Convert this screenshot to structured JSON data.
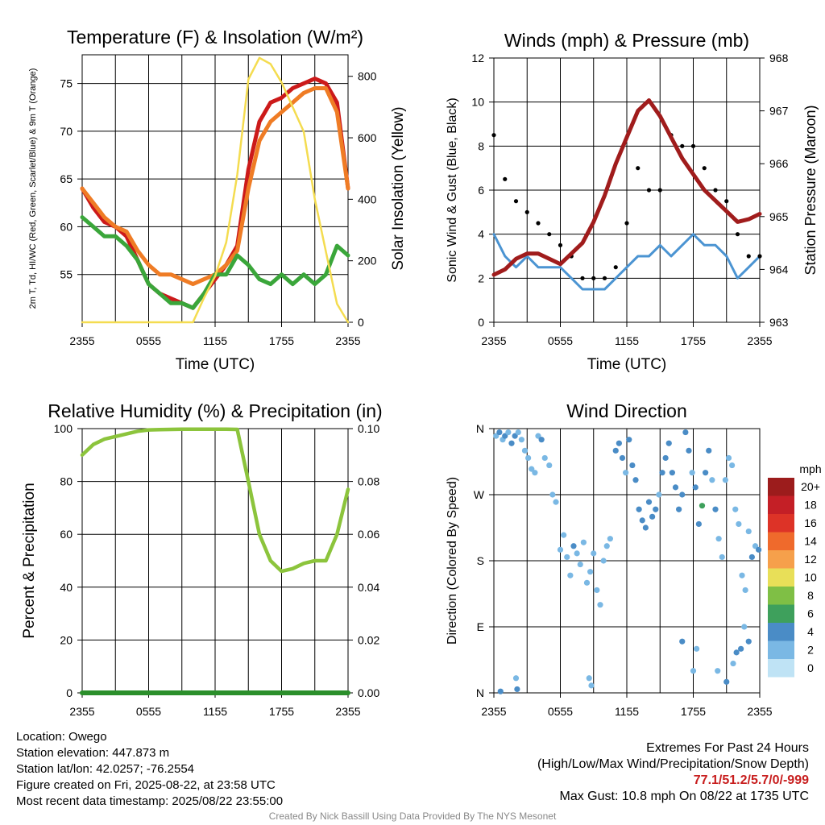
{
  "colors": {
    "red": "#cc1a1a",
    "orange": "#ef7c25",
    "green": "#3aa63a",
    "yellow": "#f4dc50",
    "maroon": "#a01c1c",
    "blue": "#4b94d2",
    "black": "#000000",
    "rh": "#8cc43c",
    "precip": "#2b8f2b",
    "extremes": "#c81e1e"
  },
  "xticks": [
    "2355",
    "0555",
    "1155",
    "1755",
    "2355"
  ],
  "xlabel": "Time (UTC)",
  "panels": {
    "temp": {
      "title": "Temperature (F) & Insolation (W/m²)",
      "ylabel_left": "2m T, Td, HI/WC (Red, Green, Scarlet/Blue) & 9m T (Orange)",
      "ylabel_right": "Solar Insolation (Yellow)",
      "yticks_left": [
        "55",
        "60",
        "65",
        "70",
        "75"
      ],
      "yticks_right": [
        "0",
        "200",
        "400",
        "600",
        "800"
      ]
    },
    "wind": {
      "title": "Winds (mph) & Pressure (mb)",
      "ylabel_left": "Sonic Wind & Gust (Blue, Black)",
      "ylabel_right": "Station Pressure (Maroon)",
      "yticks_left": [
        "0",
        "2",
        "4",
        "6",
        "8",
        "10",
        "12"
      ],
      "yticks_right": [
        "963",
        "964",
        "965",
        "966",
        "967",
        "968"
      ]
    },
    "rh": {
      "title": "Relative Humidity (%) & Precipitation (in)",
      "ylabel_left": "Percent & Precipitation",
      "yticks_left": [
        "0",
        "20",
        "40",
        "60",
        "80",
        "100"
      ],
      "yticks_right": [
        "0.00",
        "0.02",
        "0.04",
        "0.06",
        "0.08",
        "0.10"
      ]
    },
    "dir": {
      "title": "Wind Direction",
      "ylabel_left": "Direction (Colored By Speed)",
      "yticks_left": [
        "N",
        "E",
        "S",
        "W",
        "N"
      ],
      "legend_title": "mph",
      "legend_labels": [
        "20+",
        "18",
        "16",
        "14",
        "12",
        "10",
        "8",
        "6",
        "4",
        "2",
        "0"
      ],
      "legend_colors": [
        "#9c1c1c",
        "#c41f26",
        "#dd3327",
        "#ef6a2c",
        "#f6a04b",
        "#e8df58",
        "#7fbf45",
        "#3ea05c",
        "#4a8cc6",
        "#7ab8e4",
        "#bfe3f5"
      ]
    }
  },
  "chart_data": [
    {
      "type": "line",
      "title": "Temperature (F) & Insolation (W/m²)",
      "xlabel": "Time (UTC)",
      "x_hours": [
        0,
        1,
        2,
        3,
        4,
        5,
        6,
        7,
        8,
        9,
        10,
        11,
        12,
        13,
        14,
        15,
        16,
        17,
        18,
        19,
        20,
        21,
        22,
        23,
        24
      ],
      "ylim_left": [
        50,
        78
      ],
      "ylim_right": [
        0,
        870
      ],
      "series": [
        {
          "name": "2m T",
          "axis": "left",
          "values": [
            64,
            62,
            60.5,
            60,
            59,
            56.5,
            54,
            53,
            52.5,
            52,
            51.5,
            53,
            54.5,
            56,
            58,
            66,
            71,
            73,
            73.5,
            74.5,
            75,
            75.5,
            75,
            73,
            64
          ]
        },
        {
          "name": "9m T",
          "axis": "left",
          "values": [
            64,
            62.5,
            61,
            60,
            59.5,
            57.5,
            56,
            55,
            55,
            54.5,
            54,
            54.5,
            55,
            56,
            57.5,
            64,
            69,
            71,
            72,
            73,
            74,
            74.5,
            74.5,
            72,
            64
          ]
        },
        {
          "name": "Td",
          "axis": "left",
          "values": [
            61,
            60,
            59,
            59,
            58,
            56.5,
            54,
            53,
            52,
            52,
            51.5,
            53,
            55,
            55,
            57,
            56,
            54.5,
            54,
            55,
            54,
            55,
            54,
            55,
            58,
            57
          ]
        },
        {
          "name": "Insolation",
          "axis": "right",
          "values": [
            0,
            0,
            0,
            0,
            0,
            0,
            0,
            0,
            0,
            0,
            0,
            80,
            150,
            260,
            480,
            790,
            860,
            840,
            780,
            700,
            620,
            400,
            230,
            60,
            0
          ]
        }
      ]
    },
    {
      "type": "line",
      "title": "Winds (mph) & Pressure (mb)",
      "xlabel": "Time (UTC)",
      "x_hours": [
        0,
        1,
        2,
        3,
        4,
        5,
        6,
        7,
        8,
        9,
        10,
        11,
        12,
        13,
        14,
        15,
        16,
        17,
        18,
        19,
        20,
        21,
        22,
        23,
        24
      ],
      "ylim_left": [
        0,
        12
      ],
      "ylim_right": [
        963,
        968
      ],
      "series": [
        {
          "name": "Sonic Wind",
          "axis": "left",
          "values": [
            4,
            3,
            2.5,
            3,
            2.5,
            2.5,
            2.5,
            2,
            1.5,
            1.5,
            1.5,
            2,
            2.5,
            3,
            3,
            3.5,
            3,
            3.5,
            4,
            3.5,
            3.5,
            3,
            2,
            2.5,
            3
          ]
        },
        {
          "name": "Gust",
          "axis": "left",
          "values": [
            8.5,
            6.5,
            5.5,
            5,
            4.5,
            4,
            3.5,
            3,
            2,
            2,
            2,
            2.5,
            4.5,
            7,
            6,
            6,
            8.5,
            8,
            8,
            7,
            6,
            5.5,
            4,
            3,
            3
          ]
        },
        {
          "name": "Station Pressure",
          "axis": "right",
          "values": [
            963.9,
            964,
            964.2,
            964.3,
            964.3,
            964.2,
            964.1,
            964.3,
            964.5,
            964.9,
            965.4,
            966,
            966.5,
            967,
            967.2,
            966.9,
            966.5,
            966.1,
            965.8,
            965.5,
            965.3,
            965.1,
            964.9,
            964.95,
            965.05
          ]
        }
      ]
    },
    {
      "type": "line",
      "title": "Relative Humidity (%) & Precipitation (in)",
      "xlabel": "Time (UTC)",
      "x_hours": [
        0,
        1,
        2,
        3,
        4,
        5,
        6,
        7,
        8,
        9,
        10,
        11,
        12,
        13,
        14,
        15,
        16,
        17,
        18,
        19,
        20,
        21,
        22,
        23,
        24
      ],
      "ylim_left": [
        0,
        100
      ],
      "ylim_right": [
        0,
        0.1
      ],
      "series": [
        {
          "name": "Relative Humidity",
          "axis": "left",
          "values": [
            90,
            94,
            96,
            97,
            98,
            99,
            99.5,
            99.6,
            99.7,
            99.8,
            99.8,
            99.8,
            99.8,
            99.8,
            99.7,
            80,
            60,
            50,
            46,
            47,
            49,
            50,
            50,
            60,
            77
          ]
        },
        {
          "name": "Precipitation",
          "axis": "right",
          "values": [
            0,
            0,
            0,
            0,
            0,
            0,
            0,
            0,
            0,
            0,
            0,
            0,
            0,
            0,
            0,
            0,
            0,
            0,
            0,
            0,
            0,
            0,
            0,
            0,
            0
          ]
        }
      ]
    },
    {
      "type": "scatter",
      "title": "Wind Direction",
      "ylabel": "Direction (Colored By Speed)",
      "x_unit": "hours since 2355 UTC",
      "ylim": [
        0,
        360
      ],
      "points": [
        [
          0.2,
          350,
          2
        ],
        [
          0.5,
          355,
          3
        ],
        [
          0.8,
          345,
          2
        ],
        [
          1.0,
          350,
          4
        ],
        [
          1.3,
          355,
          2
        ],
        [
          1.6,
          340,
          3
        ],
        [
          1.9,
          350,
          4
        ],
        [
          2.2,
          355,
          2
        ],
        [
          2.5,
          345,
          1
        ],
        [
          2.8,
          330,
          2
        ],
        [
          3.1,
          320,
          1
        ],
        [
          3.4,
          305,
          1
        ],
        [
          3.7,
          300,
          2
        ],
        [
          4.0,
          350,
          2
        ],
        [
          4.3,
          345,
          3
        ],
        [
          4.6,
          320,
          2
        ],
        [
          5.0,
          310,
          1
        ],
        [
          5.3,
          270,
          1
        ],
        [
          5.6,
          260,
          2
        ],
        [
          6.0,
          195,
          1
        ],
        [
          6.3,
          215,
          2
        ],
        [
          6.6,
          185,
          1
        ],
        [
          6.9,
          160,
          1
        ],
        [
          7.2,
          200,
          3
        ],
        [
          7.5,
          190,
          2
        ],
        [
          7.8,
          175,
          1
        ],
        [
          8.1,
          205,
          2
        ],
        [
          8.4,
          150,
          1
        ],
        [
          8.7,
          165,
          1
        ],
        [
          9.0,
          190,
          2
        ],
        [
          9.3,
          140,
          1
        ],
        [
          9.6,
          120,
          1
        ],
        [
          9.9,
          180,
          2
        ],
        [
          10.2,
          200,
          1
        ],
        [
          10.5,
          210,
          1
        ],
        [
          11.0,
          330,
          3
        ],
        [
          11.3,
          340,
          4
        ],
        [
          11.6,
          320,
          3
        ],
        [
          11.9,
          300,
          2
        ],
        [
          12.2,
          345,
          4
        ],
        [
          12.5,
          310,
          3
        ],
        [
          12.8,
          290,
          4
        ],
        [
          13.1,
          250,
          3
        ],
        [
          13.4,
          235,
          4
        ],
        [
          13.7,
          225,
          3
        ],
        [
          14.0,
          260,
          4
        ],
        [
          14.3,
          240,
          3
        ],
        [
          14.6,
          250,
          4
        ],
        [
          14.9,
          270,
          2
        ],
        [
          15.2,
          300,
          3
        ],
        [
          15.5,
          320,
          4
        ],
        [
          15.8,
          340,
          3
        ],
        [
          16.1,
          300,
          4
        ],
        [
          16.4,
          280,
          3
        ],
        [
          16.7,
          250,
          4
        ],
        [
          17.0,
          270,
          3
        ],
        [
          17.3,
          355,
          4
        ],
        [
          17.6,
          330,
          3
        ],
        [
          17.9,
          300,
          2
        ],
        [
          18.2,
          280,
          4
        ],
        [
          18.5,
          230,
          3
        ],
        [
          18.8,
          255,
          6
        ],
        [
          19.1,
          300,
          4
        ],
        [
          19.4,
          330,
          3
        ],
        [
          19.7,
          290,
          2
        ],
        [
          20.0,
          250,
          3
        ],
        [
          20.3,
          210,
          2
        ],
        [
          20.6,
          185,
          2
        ],
        [
          20.9,
          290,
          2
        ],
        [
          21.2,
          320,
          2
        ],
        [
          21.5,
          310,
          1
        ],
        [
          21.8,
          250,
          2
        ],
        [
          22.1,
          230,
          1
        ],
        [
          22.4,
          160,
          1
        ],
        [
          22.7,
          140,
          2
        ],
        [
          23.0,
          220,
          2
        ],
        [
          23.3,
          185,
          3
        ],
        [
          23.6,
          200,
          2
        ],
        [
          23.9,
          195,
          3
        ],
        [
          0.6,
          2,
          3
        ],
        [
          2.0,
          20,
          2
        ],
        [
          2.1,
          5,
          3
        ],
        [
          8.6,
          20,
          2
        ],
        [
          8.8,
          10,
          1
        ],
        [
          17.0,
          70,
          3
        ],
        [
          18.0,
          30,
          2
        ],
        [
          18.3,
          60,
          2
        ],
        [
          20.2,
          30,
          2
        ],
        [
          21.0,
          15,
          3
        ],
        [
          21.6,
          40,
          2
        ],
        [
          21.9,
          55,
          3
        ],
        [
          22.3,
          60,
          4
        ],
        [
          22.6,
          90,
          2
        ],
        [
          23.0,
          70,
          3
        ]
      ]
    }
  ],
  "footer": {
    "location": "Location: Owego",
    "elevation": "Station elevation: 447.873 m",
    "latlon": "Station lat/lon: 42.0257; -76.2554",
    "created": "Figure created on Fri, 2025-08-22, at 23:58 UTC",
    "recent": "Most recent data timestamp: 2025/08/22 23:55:00",
    "extremes_title": "Extremes For Past 24 Hours",
    "extremes_sub": "(High/Low/Max Wind/Precipitation/Snow Depth)",
    "extremes_vals": "77.1/51.2/5.7/0/-999",
    "max_gust": "Max Gust: 10.8 mph On 08/22 at 1735 UTC",
    "credit": "Created By Nick Bassill Using Data Provided By The NYS Mesonet"
  }
}
